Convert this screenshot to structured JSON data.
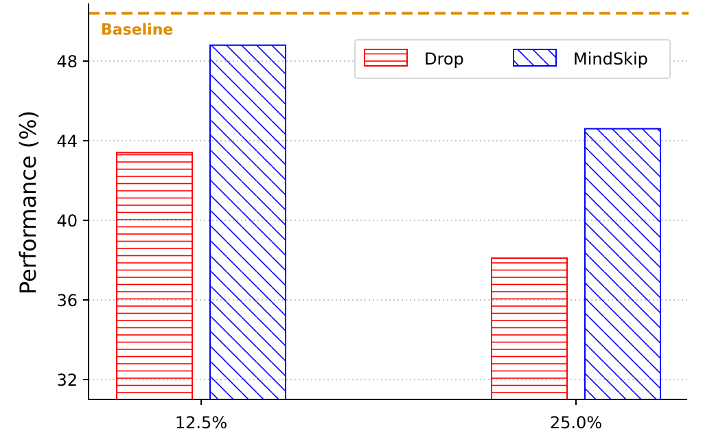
{
  "chart_data": {
    "type": "bar",
    "categories": [
      "12.5%",
      "25.0%"
    ],
    "series": [
      {
        "name": "Drop",
        "values": [
          43.4,
          38.1
        ],
        "color": "#ff0000",
        "hatch": "horizontal"
      },
      {
        "name": "MindSkip",
        "values": [
          48.8,
          44.6
        ],
        "color": "#0000ff",
        "hatch": "diagonal"
      }
    ],
    "baseline": {
      "label": "Baseline",
      "value": 50.4,
      "color": "#e08a00"
    },
    "ylabel": "Performance (%)",
    "xlabel": "",
    "ylim": [
      31,
      50.6
    ],
    "yticks": [
      32,
      36,
      40,
      44,
      48
    ],
    "grid": "horizontal dotted",
    "legend": "top-right"
  }
}
